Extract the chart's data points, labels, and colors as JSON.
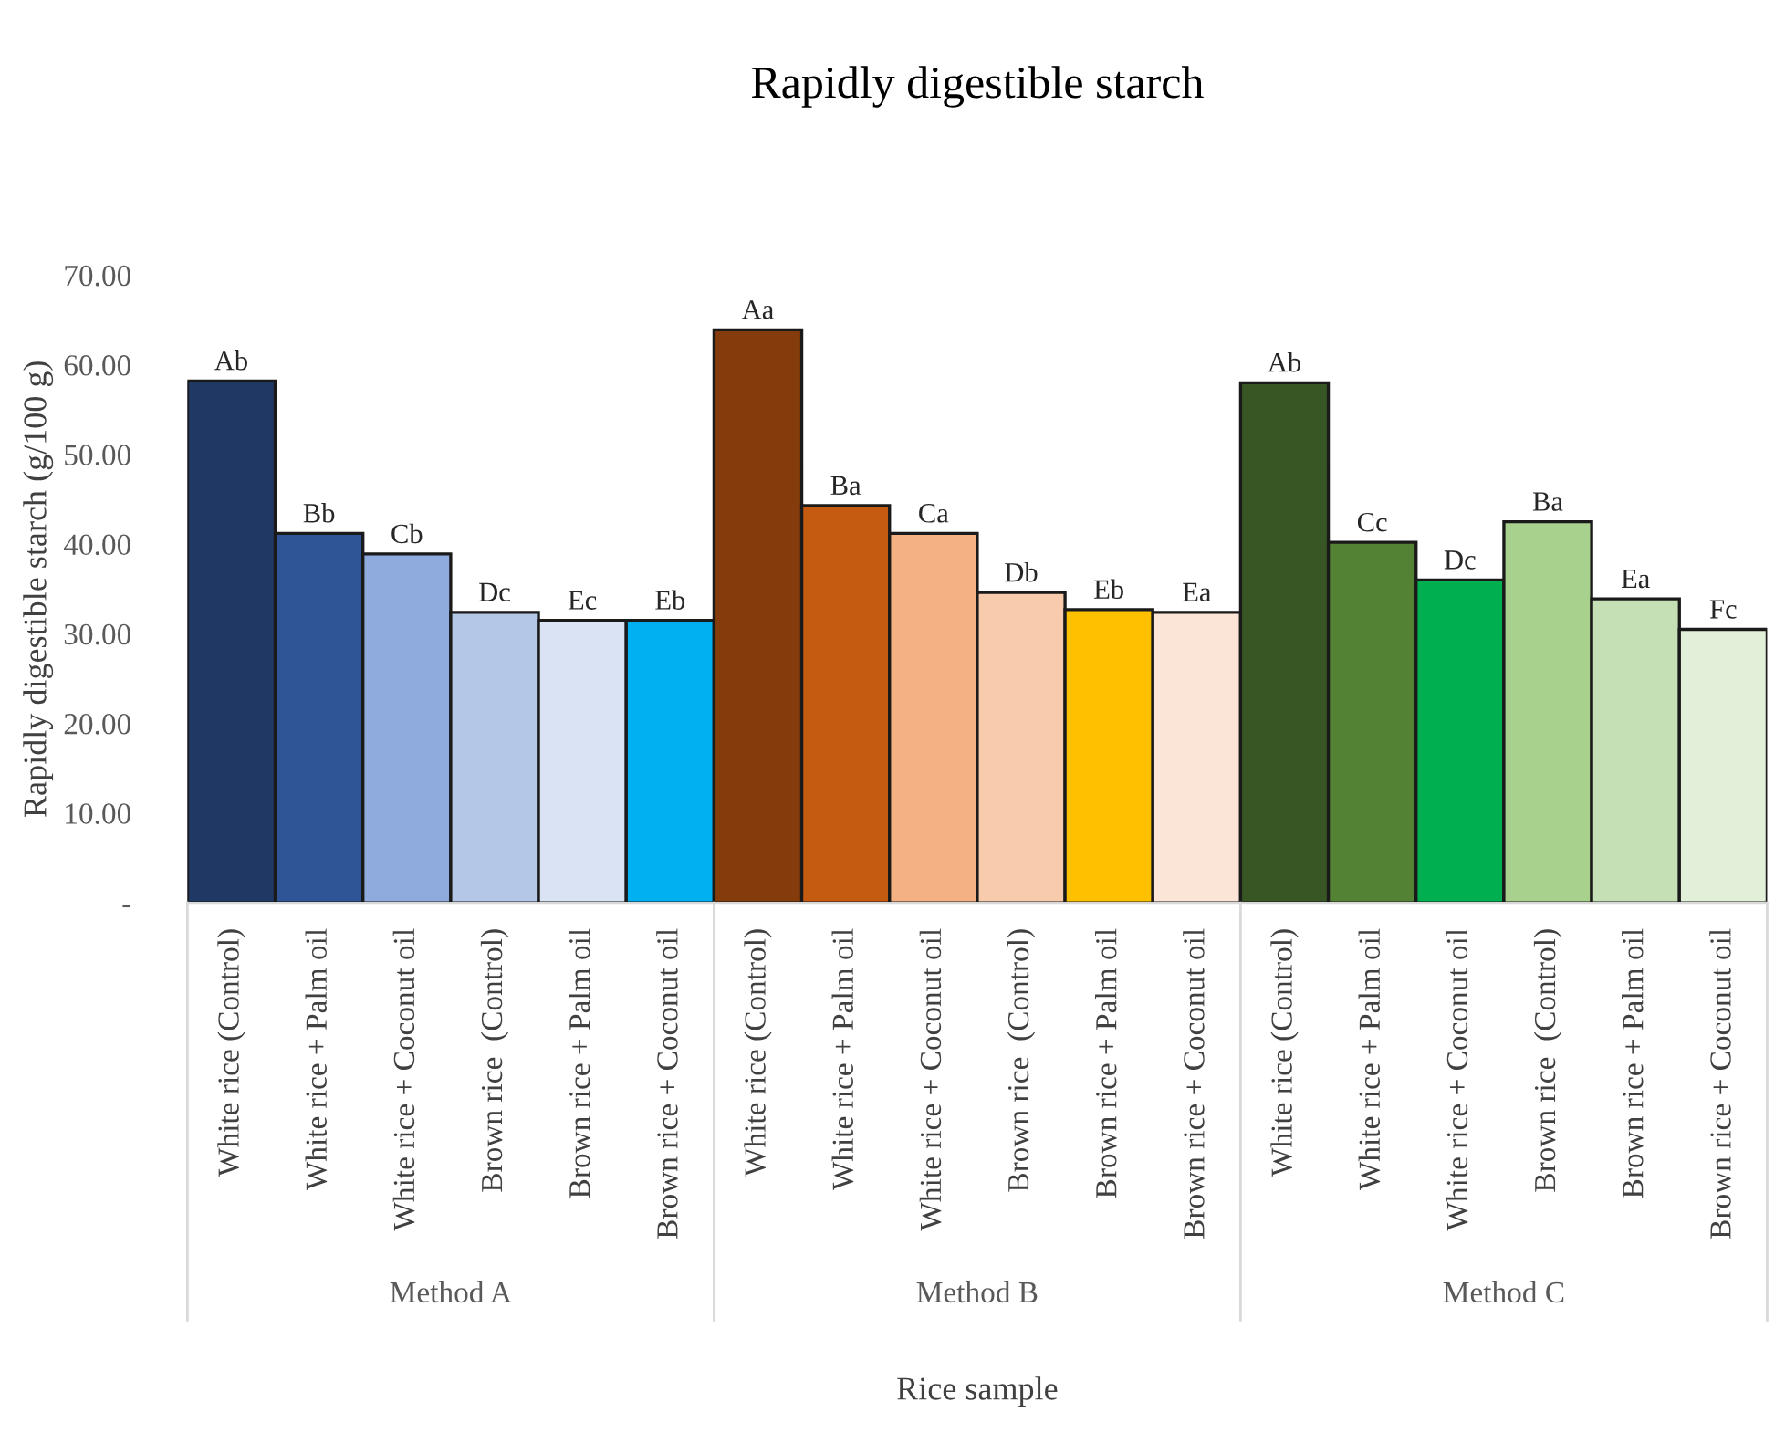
{
  "chart_data": {
    "type": "bar",
    "title": "Rapidly digestible starch",
    "xlabel": "Rice sample",
    "ylabel": "Rapidly digestible starch (g/100 g)",
    "categories": [
      "White rice (Control)",
      "White rice + Palm oil",
      "White rice + Coconut oil",
      "Brown rice  (Control)",
      "Brown rice + Palm oil",
      "Brown rice + Coconut oil",
      "White rice (Control)",
      "White rice + Palm oil",
      "White rice + Coconut oil",
      "Brown rice  (Control)",
      "Brown rice + Palm oil",
      "Brown rice + Coconut oil",
      "White rice (Control)",
      "White rice + Palm oil",
      "White rice + Coconut oil",
      "Brown rice  (Control)",
      "Brown rice + Palm oil",
      "Brown rice + Coconut oil"
    ],
    "values": [
      58.2,
      41.2,
      38.9,
      32.4,
      31.5,
      31.5,
      63.9,
      44.3,
      41.2,
      34.6,
      32.7,
      32.4,
      58.0,
      40.2,
      36.0,
      42.5,
      33.9,
      30.5
    ],
    "colors": [
      "#203864",
      "#2f5597",
      "#8faadc",
      "#b4c7e7",
      "#dae3f3",
      "#00b0f0",
      "#843c0c",
      "#c55a11",
      "#f4b183",
      "#f8cbad",
      "#ffc000",
      "#fbe5d6",
      "#375623",
      "#548235",
      "#00b050",
      "#a9d18e",
      "#c5e0b4",
      "#e2f0d9"
    ],
    "value_labels": [
      "Ab",
      "Bb",
      "Cb",
      "Dc",
      "Ec",
      "Eb",
      "Aa",
      "Ba",
      "Ca",
      "Db",
      "Eb",
      "Ea",
      "Ab",
      "Cc",
      "Dc",
      "Ba",
      "Ea",
      "Fc"
    ],
    "annotations": [
      "Method A",
      "Method B",
      "Method C"
    ],
    "ylim": [
      0,
      70
    ],
    "yticks": [
      {
        "value": 0,
        "label": "-"
      },
      {
        "value": 10,
        "label": "10.00"
      },
      {
        "value": 20,
        "label": "20.00"
      },
      {
        "value": 30,
        "label": "30.00"
      },
      {
        "value": 40,
        "label": "40.00"
      },
      {
        "value": 50,
        "label": "50.00"
      },
      {
        "value": 60,
        "label": "60.00"
      },
      {
        "value": 70,
        "label": "70.00"
      }
    ],
    "grid": false,
    "legend": false
  }
}
